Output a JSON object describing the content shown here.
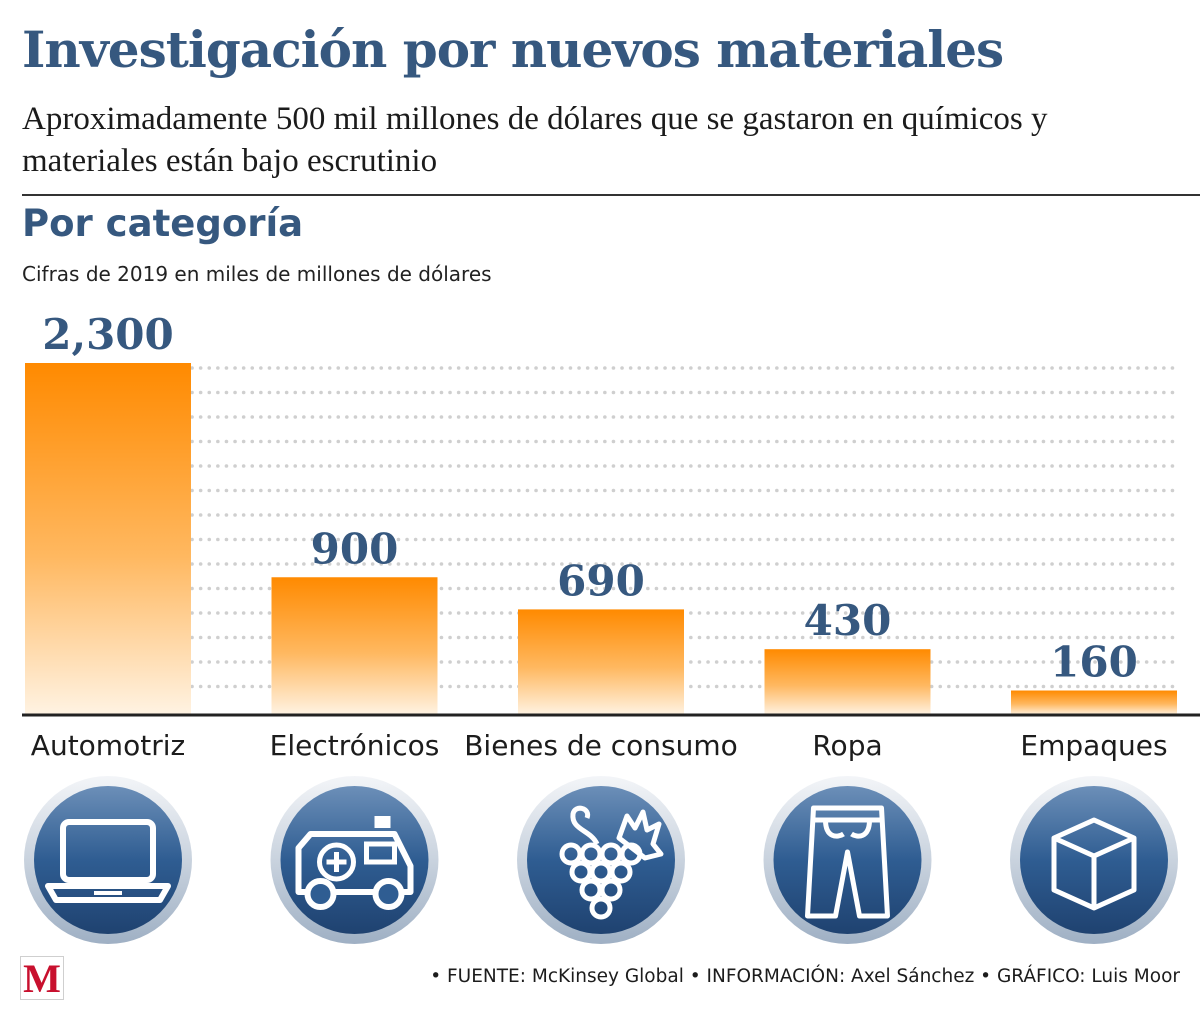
{
  "header": {
    "title": "Investigación por nuevos materiales",
    "subtitle": "Aproximadamente 500 mil millones de dólares que se gastaron en químicos y materiales están bajo escrutinio"
  },
  "colors": {
    "title": "#36587f",
    "bar_top": "#ff8a00",
    "bar_bottom": "#fff3e3",
    "icon_fill": "#2f5d92",
    "icon_ring": "#cfd8e3",
    "axis": "#222222",
    "logo": "#c8102e"
  },
  "chart_data": {
    "type": "bar",
    "title": "Por categoría",
    "subtitle": "Cifras de 2019 en miles de millones de dólares",
    "categories": [
      "Automotriz",
      "Electrónicos",
      "Bienes de consumo",
      "Ropa",
      "Empaques"
    ],
    "values": [
      2300,
      900,
      690,
      430,
      160
    ],
    "value_labels": [
      "2,300",
      "900",
      "690",
      "430",
      "160"
    ],
    "ylim": [
      0,
      2300
    ],
    "grid": "dotted-horizontal",
    "icons": [
      "laptop-icon",
      "ambulance-icon",
      "grapes-icon",
      "pants-icon",
      "box-icon"
    ]
  },
  "footer": {
    "logo_letter": "M",
    "credits": "• FUENTE: McKinsey Global  • INFORMACIÓN: Axel Sánchez  • GRÁFICO: Luis Moor"
  }
}
